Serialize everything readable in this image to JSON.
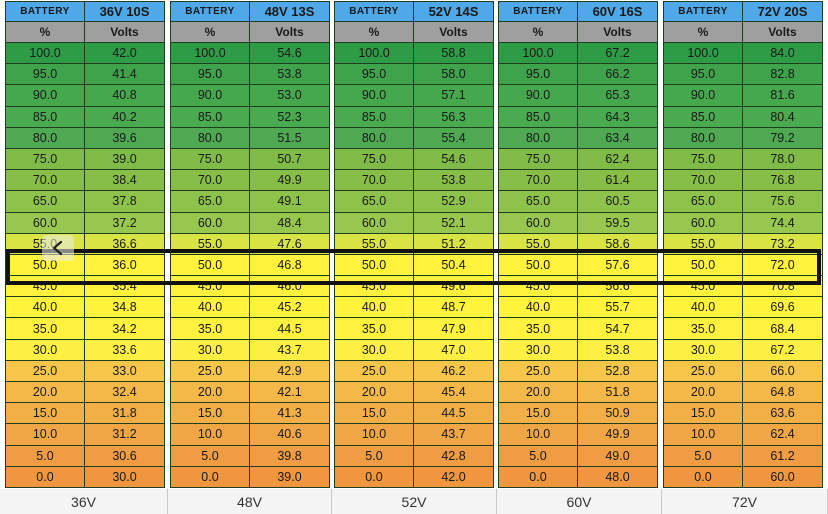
{
  "columns_header": {
    "pct_label": "%",
    "volts_label": "Volts",
    "battery_label": "BATTERY"
  },
  "row_colors": [
    "#2e9c46",
    "#3ea34b",
    "#45a84d",
    "#49aa4f",
    "#4ea952",
    "#7fbb46",
    "#86be48",
    "#8ec34b",
    "#97c74e",
    "#d8e443",
    "#fff23c",
    "#fff23c",
    "#fff33c",
    "#fff23e",
    "#fdf043",
    "#f6c64a",
    "#f4b849",
    "#f2af47",
    "#f1a645",
    "#f09c42",
    "#f0963f",
    "#e8312c"
  ],
  "percent_values": [
    "100.0",
    "95.0",
    "90.0",
    "85.0",
    "80.0",
    "75.0",
    "70.0",
    "65.0",
    "60.0",
    "55.0",
    "50.0",
    "45.0",
    "40.0",
    "35.0",
    "30.0",
    "25.0",
    "20.0",
    "15.0",
    "10.0",
    "5.0",
    "0.0"
  ],
  "tables": [
    {
      "label": "36V 10S",
      "footer": "36V",
      "volts": [
        "42.0",
        "41.4",
        "40.8",
        "40.2",
        "39.6",
        "39.0",
        "38.4",
        "37.8",
        "37.2",
        "36.6",
        "36.0",
        "35.4",
        "34.8",
        "34.2",
        "33.6",
        "33.0",
        "32.4",
        "31.8",
        "31.2",
        "30.6",
        "30.0"
      ]
    },
    {
      "label": "48V 13S",
      "footer": "48V",
      "volts": [
        "54.6",
        "53.8",
        "53.0",
        "52.3",
        "51.5",
        "50.7",
        "49.9",
        "49.1",
        "48.4",
        "47.6",
        "46.8",
        "46.0",
        "45.2",
        "44.5",
        "43.7",
        "42.9",
        "42.1",
        "41.3",
        "40.6",
        "39.8",
        "39.0"
      ]
    },
    {
      "label": "52V 14S",
      "footer": "52V",
      "volts": [
        "58.8",
        "58.0",
        "57.1",
        "56.3",
        "55.4",
        "54.6",
        "53.8",
        "52.9",
        "52.1",
        "51.2",
        "50.4",
        "49.6",
        "48.7",
        "47.9",
        "47.0",
        "46.2",
        "45.4",
        "44.5",
        "43.7",
        "42.8",
        "42.0"
      ]
    },
    {
      "label": "60V 16S",
      "footer": "60V",
      "volts": [
        "67.2",
        "66.2",
        "65.3",
        "64.3",
        "63.4",
        "62.4",
        "61.4",
        "60.5",
        "59.5",
        "58.6",
        "57.6",
        "56.6",
        "55.7",
        "54.7",
        "53.8",
        "52.8",
        "51.8",
        "50.9",
        "49.9",
        "49.0",
        "48.0"
      ]
    },
    {
      "label": "72V 20S",
      "footer": "72V",
      "volts": [
        "84.0",
        "82.8",
        "81.6",
        "80.4",
        "79.2",
        "78.0",
        "76.8",
        "75.6",
        "74.4",
        "73.2",
        "72.0",
        "70.8",
        "69.6",
        "68.4",
        "67.2",
        "66.0",
        "64.8",
        "63.6",
        "62.4",
        "61.2",
        "60.0"
      ]
    }
  ],
  "back_icon": "chevron-left-icon"
}
